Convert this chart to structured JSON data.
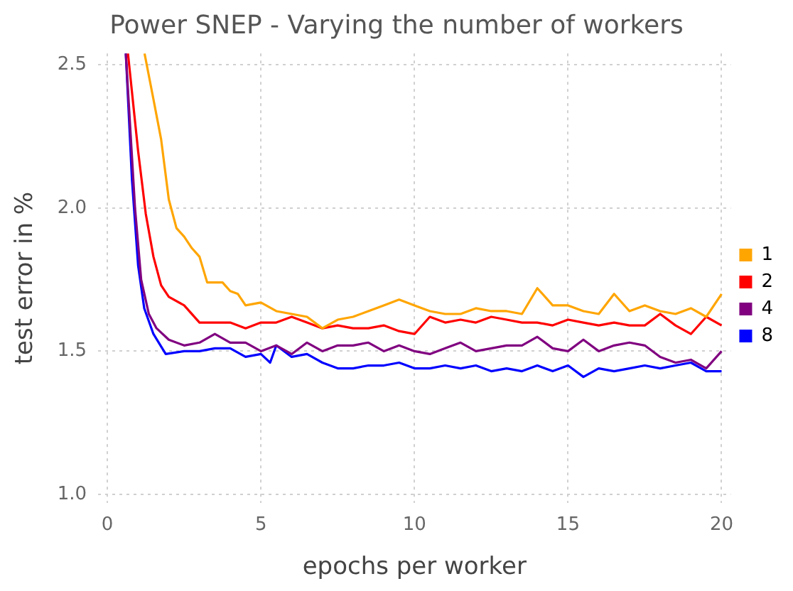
{
  "chart_data": {
    "type": "line",
    "title": "Power SNEP - Varying the number of workers",
    "xlabel": "epochs per worker",
    "ylabel": "test error in %",
    "xlim": [
      -0.3,
      20.3
    ],
    "xticks": [
      0,
      5,
      10,
      15,
      20
    ],
    "ylim": [
      0.97,
      2.54
    ],
    "yticks": [
      {
        "value": 1,
        "label": "1.0"
      },
      {
        "value": 1.5,
        "label": "1.5"
      },
      {
        "value": 2,
        "label": "2.0"
      },
      {
        "value": 2.5,
        "label": "2.5"
      }
    ],
    "grid": true,
    "legend": "right",
    "marker": "none",
    "line_style": "solid",
    "series": [
      {
        "name": "1",
        "color": "#ffa500",
        "x": [
          1.21,
          1.5,
          1.75,
          2.0,
          2.25,
          2.5,
          2.75,
          3.0,
          3.25,
          3.5,
          3.75,
          4.0,
          4.25,
          4.5,
          5,
          5.5,
          6,
          6.5,
          7,
          7.5,
          8,
          8.5,
          9,
          9.5,
          10,
          10.5,
          11,
          11.5,
          12,
          12.5,
          13,
          13.5,
          14,
          14.5,
          15,
          15.5,
          16,
          16.5,
          17,
          17.5,
          18,
          18.5,
          19,
          19.5,
          20
        ],
        "values": [
          2.54,
          2.38,
          2.24,
          2.03,
          1.93,
          1.9,
          1.86,
          1.83,
          1.74,
          1.74,
          1.74,
          1.71,
          1.7,
          1.66,
          1.67,
          1.64,
          1.63,
          1.62,
          1.58,
          1.61,
          1.62,
          1.64,
          1.66,
          1.68,
          1.66,
          1.64,
          1.63,
          1.63,
          1.65,
          1.64,
          1.64,
          1.63,
          1.72,
          1.66,
          1.66,
          1.64,
          1.63,
          1.7,
          1.64,
          1.66,
          1.64,
          1.63,
          1.65,
          1.62,
          1.7
        ]
      },
      {
        "name": "2",
        "color": "#ff0000",
        "x": [
          0.67,
          1.0,
          1.25,
          1.5,
          1.75,
          2,
          2.5,
          3,
          3.5,
          4,
          4.5,
          5,
          5.5,
          6,
          6.5,
          7,
          7.5,
          8,
          8.5,
          9,
          9.5,
          10,
          10.5,
          11,
          11.5,
          12,
          12.5,
          13,
          13.5,
          14,
          14.5,
          15,
          15.5,
          16,
          16.5,
          17,
          17.5,
          18,
          18.5,
          19,
          19.5,
          20
        ],
        "values": [
          2.54,
          2.2,
          1.98,
          1.83,
          1.73,
          1.69,
          1.66,
          1.6,
          1.6,
          1.6,
          1.58,
          1.6,
          1.6,
          1.62,
          1.6,
          1.58,
          1.59,
          1.58,
          1.58,
          1.59,
          1.57,
          1.56,
          1.62,
          1.6,
          1.61,
          1.6,
          1.62,
          1.61,
          1.6,
          1.6,
          1.59,
          1.61,
          1.6,
          1.59,
          1.6,
          1.59,
          1.59,
          1.63,
          1.59,
          1.56,
          1.62,
          1.59
        ]
      },
      {
        "name": "4",
        "color": "#800080",
        "x": [
          0.6,
          0.9,
          1.1,
          1.35,
          1.6,
          2,
          2.5,
          3,
          3.5,
          4,
          4.5,
          5,
          5.5,
          6,
          6.5,
          7,
          7.5,
          8,
          8.5,
          9,
          9.5,
          10,
          10.5,
          11,
          11.5,
          12,
          12.5,
          13,
          13.5,
          14,
          14.5,
          15,
          15.5,
          16,
          16.5,
          17,
          17.5,
          18,
          18.5,
          19,
          19.5,
          20
        ],
        "values": [
          2.54,
          2.0,
          1.75,
          1.63,
          1.58,
          1.54,
          1.52,
          1.53,
          1.56,
          1.53,
          1.53,
          1.5,
          1.52,
          1.49,
          1.53,
          1.5,
          1.52,
          1.52,
          1.53,
          1.5,
          1.52,
          1.5,
          1.49,
          1.51,
          1.53,
          1.5,
          1.51,
          1.52,
          1.52,
          1.55,
          1.51,
          1.5,
          1.54,
          1.5,
          1.52,
          1.53,
          1.52,
          1.48,
          1.46,
          1.47,
          1.44,
          1.5
        ]
      },
      {
        "name": "8",
        "color": "#0000ff",
        "x": [
          0.6,
          0.8,
          1.0,
          1.2,
          1.5,
          1.9,
          2.5,
          3,
          3.5,
          4,
          4.5,
          5,
          5.3,
          5.5,
          6,
          6.5,
          7,
          7.5,
          8,
          8.5,
          9,
          9.5,
          10,
          10.5,
          11,
          11.5,
          12,
          12.5,
          13,
          13.5,
          14,
          14.5,
          15,
          15.5,
          16,
          16.5,
          17,
          17.5,
          18,
          18.5,
          19,
          19.5,
          20
        ],
        "values": [
          2.54,
          2.1,
          1.8,
          1.65,
          1.56,
          1.49,
          1.5,
          1.5,
          1.51,
          1.51,
          1.48,
          1.49,
          1.46,
          1.52,
          1.48,
          1.49,
          1.46,
          1.44,
          1.44,
          1.45,
          1.45,
          1.46,
          1.44,
          1.44,
          1.45,
          1.44,
          1.45,
          1.43,
          1.44,
          1.43,
          1.45,
          1.43,
          1.45,
          1.41,
          1.44,
          1.43,
          1.44,
          1.45,
          1.44,
          1.45,
          1.46,
          1.43,
          1.43
        ]
      }
    ]
  }
}
